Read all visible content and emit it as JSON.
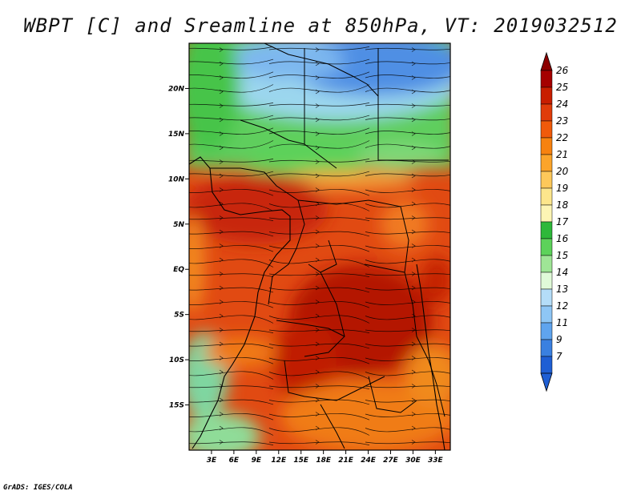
{
  "title": "WBPT [C] and Sreamline at 850hPa, VT: 2019032512",
  "footer": "GrADS: IGES/COLA",
  "map": {
    "lon_ticks": [
      "3E",
      "6E",
      "9E",
      "12E",
      "15E",
      "18E",
      "21E",
      "24E",
      "27E",
      "30E",
      "33E"
    ],
    "lat_ticks": [
      "20N",
      "15N",
      "10N",
      "5N",
      "EQ",
      "5S",
      "10S",
      "15S"
    ],
    "lon_range": [
      0,
      35
    ],
    "lat_range": [
      -20,
      25
    ]
  },
  "colorbar": {
    "labels": [
      "26",
      "25",
      "24",
      "23",
      "22",
      "21",
      "20",
      "19",
      "18",
      "17",
      "16",
      "15",
      "14",
      "13",
      "12",
      "11",
      "9",
      "7"
    ],
    "colors": [
      "#a50000",
      "#c81e00",
      "#e03c0a",
      "#f05a0a",
      "#f7820f",
      "#fba42a",
      "#fdc85a",
      "#fde68c",
      "#fdf5b4",
      "#2eb83a",
      "#5dd25a",
      "#9fe596",
      "#e0fad8",
      "#b4ddf8",
      "#8ec6f5",
      "#5fa4ee",
      "#3a80e0",
      "#1f5fd4"
    ],
    "top_arrow_color": "#8c0000",
    "bottom_arrow_color": "#1f5fd4"
  }
}
